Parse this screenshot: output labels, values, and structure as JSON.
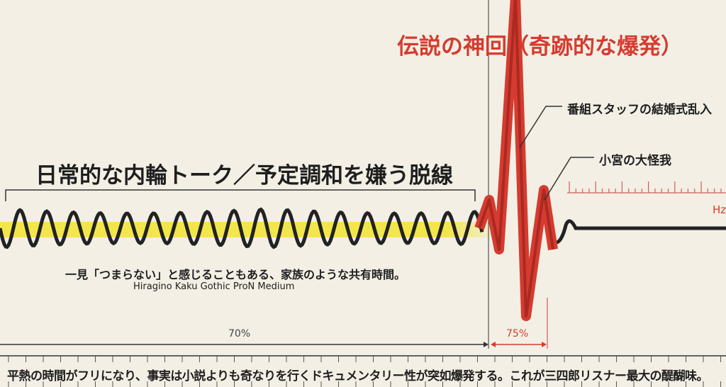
{
  "main_title": "日常的な内輪トーク／予定調和を嫌う脱線",
  "climax_title": "伝説の神回（奇跡的な爆発）",
  "annotations": [
    "番組スタッフの結婚式乱入",
    "小宮の大怪我"
  ],
  "caption": "一見「つまらない」と感じることもある、家族のような共有時間。",
  "font_note": "Hiragino Kaku Gothic ProN Medium",
  "unit_label": "Hz",
  "left_span_label": "70%",
  "right_span_label": "75%",
  "footer": "平熱の時間がフリになり、事実は小説よりも奇なりを行くドキュメンタリー性が突如爆発する。これが三四郎リスナー最大の醍醐味。",
  "colors": {
    "accent": "#d63b2f",
    "highlight": "#f3e64a",
    "ink": "#222222",
    "background": "#f3efe5"
  }
}
